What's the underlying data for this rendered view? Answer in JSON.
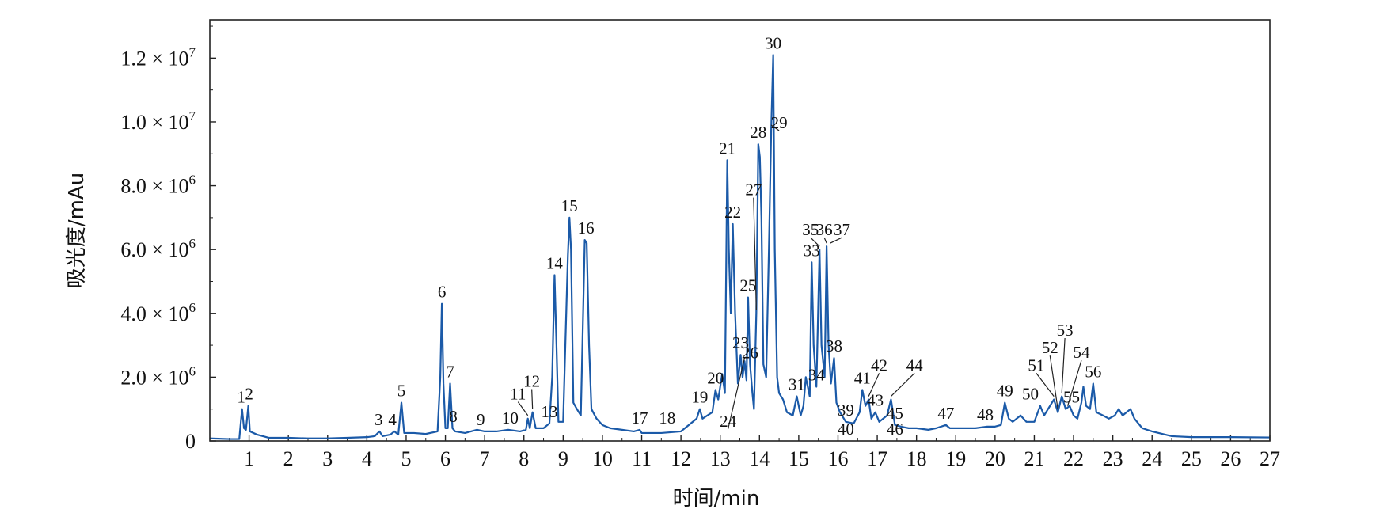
{
  "chart_data": {
    "type": "line",
    "title": "",
    "xlabel": "时间/min",
    "ylabel": "吸光度/mAu",
    "xlim": [
      0,
      27
    ],
    "ylim": [
      0,
      13200000
    ],
    "x_ticks": [
      "1",
      "2",
      "3",
      "4",
      "5",
      "6",
      "7",
      "8",
      "9",
      "10",
      "11",
      "12",
      "13",
      "14",
      "15",
      "16",
      "17",
      "18",
      "19",
      "20",
      "21",
      "22",
      "23",
      "24",
      "25",
      "26",
      "27"
    ],
    "y_ticks": [
      {
        "value": 0,
        "label": "0",
        "exp": ""
      },
      {
        "value": 2000000,
        "label": "2.0 × 10",
        "exp": "6"
      },
      {
        "value": 4000000,
        "label": "4.0 × 10",
        "exp": "6"
      },
      {
        "value": 6000000,
        "label": "6.0 × 10",
        "exp": "6"
      },
      {
        "value": 8000000,
        "label": "8.0 × 10",
        "exp": "6"
      },
      {
        "value": 10000000,
        "label": "1.0 × 10",
        "exp": "7"
      },
      {
        "value": 12000000,
        "label": "1.2 × 10",
        "exp": "7"
      }
    ],
    "series": [
      {
        "color": "#1b5aa8",
        "points": [
          [
            0,
            80000
          ],
          [
            0.5,
            60000
          ],
          [
            0.75,
            60000
          ],
          [
            0.82,
            1000000
          ],
          [
            0.87,
            400000
          ],
          [
            0.92,
            350000
          ],
          [
            0.98,
            1100000
          ],
          [
            1.02,
            300000
          ],
          [
            1.2,
            200000
          ],
          [
            1.5,
            100000
          ],
          [
            2,
            100000
          ],
          [
            2.5,
            80000
          ],
          [
            3,
            80000
          ],
          [
            3.5,
            100000
          ],
          [
            4,
            120000
          ],
          [
            4.2,
            150000
          ],
          [
            4.32,
            300000
          ],
          [
            4.4,
            150000
          ],
          [
            4.6,
            200000
          ],
          [
            4.7,
            300000
          ],
          [
            4.8,
            200000
          ],
          [
            4.88,
            1200000
          ],
          [
            4.95,
            250000
          ],
          [
            5.2,
            250000
          ],
          [
            5.5,
            220000
          ],
          [
            5.8,
            300000
          ],
          [
            5.87,
            2000000
          ],
          [
            5.91,
            4300000
          ],
          [
            5.95,
            1800000
          ],
          [
            6.0,
            400000
          ],
          [
            6.06,
            400000
          ],
          [
            6.12,
            1800000
          ],
          [
            6.18,
            400000
          ],
          [
            6.25,
            300000
          ],
          [
            6.5,
            250000
          ],
          [
            6.8,
            350000
          ],
          [
            7.0,
            300000
          ],
          [
            7.3,
            300000
          ],
          [
            7.6,
            350000
          ],
          [
            7.9,
            300000
          ],
          [
            8.05,
            350000
          ],
          [
            8.1,
            700000
          ],
          [
            8.15,
            400000
          ],
          [
            8.22,
            900000
          ],
          [
            8.3,
            400000
          ],
          [
            8.5,
            400000
          ],
          [
            8.65,
            550000
          ],
          [
            8.72,
            2000000
          ],
          [
            8.78,
            5200000
          ],
          [
            8.83,
            3000000
          ],
          [
            8.88,
            600000
          ],
          [
            9.0,
            600000
          ],
          [
            9.12,
            5800000
          ],
          [
            9.16,
            7000000
          ],
          [
            9.2,
            6000000
          ],
          [
            9.26,
            1200000
          ],
          [
            9.35,
            1000000
          ],
          [
            9.45,
            800000
          ],
          [
            9.55,
            6300000
          ],
          [
            9.6,
            6200000
          ],
          [
            9.66,
            3000000
          ],
          [
            9.72,
            1000000
          ],
          [
            9.85,
            700000
          ],
          [
            10.0,
            500000
          ],
          [
            10.2,
            400000
          ],
          [
            10.5,
            350000
          ],
          [
            10.8,
            300000
          ],
          [
            10.95,
            350000
          ],
          [
            11.0,
            250000
          ],
          [
            11.5,
            250000
          ],
          [
            12.0,
            300000
          ],
          [
            12.2,
            500000
          ],
          [
            12.4,
            700000
          ],
          [
            12.48,
            1000000
          ],
          [
            12.55,
            700000
          ],
          [
            12.8,
            900000
          ],
          [
            12.88,
            1600000
          ],
          [
            12.95,
            1300000
          ],
          [
            13.05,
            2100000
          ],
          [
            13.12,
            1500000
          ],
          [
            13.18,
            8800000
          ],
          [
            13.22,
            6000000
          ],
          [
            13.27,
            4000000
          ],
          [
            13.32,
            6800000
          ],
          [
            13.38,
            4000000
          ],
          [
            13.45,
            1800000
          ],
          [
            13.52,
            2700000
          ],
          [
            13.57,
            2000000
          ],
          [
            13.62,
            2500000
          ],
          [
            13.67,
            1900000
          ],
          [
            13.71,
            4500000
          ],
          [
            13.76,
            2400000
          ],
          [
            13.82,
            1500000
          ],
          [
            13.86,
            1000000
          ],
          [
            13.92,
            4000000
          ],
          [
            13.97,
            9300000
          ],
          [
            14.01,
            8900000
          ],
          [
            14.05,
            7000000
          ],
          [
            14.1,
            2400000
          ],
          [
            14.17,
            2000000
          ],
          [
            14.24,
            6000000
          ],
          [
            14.3,
            9800000
          ],
          [
            14.35,
            12100000
          ],
          [
            14.39,
            6000000
          ],
          [
            14.45,
            2000000
          ],
          [
            14.5,
            1500000
          ],
          [
            14.6,
            1300000
          ],
          [
            14.7,
            900000
          ],
          [
            14.85,
            800000
          ],
          [
            14.95,
            1400000
          ],
          [
            15.05,
            800000
          ],
          [
            15.12,
            1100000
          ],
          [
            15.18,
            2000000
          ],
          [
            15.28,
            1400000
          ],
          [
            15.33,
            5600000
          ],
          [
            15.38,
            3000000
          ],
          [
            15.45,
            1700000
          ],
          [
            15.53,
            6000000
          ],
          [
            15.58,
            3000000
          ],
          [
            15.66,
            2000000
          ],
          [
            15.71,
            6100000
          ],
          [
            15.76,
            3000000
          ],
          [
            15.82,
            1800000
          ],
          [
            15.9,
            2600000
          ],
          [
            15.96,
            1200000
          ],
          [
            16.05,
            900000
          ],
          [
            16.2,
            600000
          ],
          [
            16.4,
            550000
          ],
          [
            16.55,
            900000
          ],
          [
            16.62,
            1600000
          ],
          [
            16.7,
            1100000
          ],
          [
            16.78,
            1300000
          ],
          [
            16.85,
            700000
          ],
          [
            16.95,
            900000
          ],
          [
            17.05,
            600000
          ],
          [
            17.25,
            800000
          ],
          [
            17.35,
            1300000
          ],
          [
            17.45,
            500000
          ],
          [
            17.6,
            450000
          ],
          [
            17.8,
            400000
          ],
          [
            18.0,
            400000
          ],
          [
            18.3,
            350000
          ],
          [
            18.5,
            400000
          ],
          [
            18.75,
            500000
          ],
          [
            18.85,
            400000
          ],
          [
            19.0,
            400000
          ],
          [
            19.5,
            400000
          ],
          [
            19.8,
            450000
          ],
          [
            20.0,
            450000
          ],
          [
            20.15,
            500000
          ],
          [
            20.25,
            1200000
          ],
          [
            20.35,
            700000
          ],
          [
            20.45,
            600000
          ],
          [
            20.65,
            800000
          ],
          [
            20.8,
            600000
          ],
          [
            21.0,
            600000
          ],
          [
            21.15,
            1100000
          ],
          [
            21.25,
            800000
          ],
          [
            21.35,
            1000000
          ],
          [
            21.5,
            1300000
          ],
          [
            21.6,
            900000
          ],
          [
            21.7,
            1400000
          ],
          [
            21.8,
            1000000
          ],
          [
            21.9,
            1100000
          ],
          [
            22.0,
            800000
          ],
          [
            22.1,
            700000
          ],
          [
            22.2,
            1200000
          ],
          [
            22.25,
            1700000
          ],
          [
            22.32,
            1100000
          ],
          [
            22.42,
            1000000
          ],
          [
            22.5,
            1800000
          ],
          [
            22.58,
            900000
          ],
          [
            22.75,
            800000
          ],
          [
            22.9,
            700000
          ],
          [
            23.05,
            800000
          ],
          [
            23.15,
            1000000
          ],
          [
            23.25,
            800000
          ],
          [
            23.35,
            900000
          ],
          [
            23.45,
            1000000
          ],
          [
            23.55,
            700000
          ],
          [
            23.75,
            400000
          ],
          [
            24.0,
            300000
          ],
          [
            24.5,
            150000
          ],
          [
            25,
            120000
          ],
          [
            26,
            120000
          ],
          [
            27,
            110000
          ]
        ]
      }
    ],
    "peak_labels": [
      {
        "text": "1",
        "x": 0.8,
        "y": 1000000
      },
      {
        "text": "2",
        "x": 1.0,
        "y": 1100000
      },
      {
        "text": "3",
        "x": 4.3,
        "y": 300000
      },
      {
        "text": "4",
        "x": 4.65,
        "y": 300000
      },
      {
        "text": "5",
        "x": 4.88,
        "y": 1200000
      },
      {
        "text": "6",
        "x": 5.91,
        "y": 4300000
      },
      {
        "text": "7",
        "x": 6.12,
        "y": 1800000
      },
      {
        "text": "8",
        "x": 6.2,
        "y": 400000
      },
      {
        "text": "9",
        "x": 6.9,
        "y": 300000
      },
      {
        "text": "10",
        "x": 7.65,
        "y": 350000
      },
      {
        "text": "11",
        "x": 8.1,
        "y": 700000,
        "lx": 7.85,
        "ly": 1300000
      },
      {
        "text": "12",
        "x": 8.22,
        "y": 900000,
        "lx": 8.2,
        "ly": 1700000
      },
      {
        "text": "13",
        "x": 8.65,
        "y": 550000
      },
      {
        "text": "14",
        "x": 8.78,
        "y": 5200000
      },
      {
        "text": "15",
        "x": 9.16,
        "y": 7000000
      },
      {
        "text": "16",
        "x": 9.58,
        "y": 6300000
      },
      {
        "text": "17",
        "x": 10.95,
        "y": 350000
      },
      {
        "text": "18",
        "x": 11.65,
        "y": 350000
      },
      {
        "text": "19",
        "x": 12.48,
        "y": 1000000
      },
      {
        "text": "20",
        "x": 12.88,
        "y": 1600000
      },
      {
        "text": "21",
        "x": 13.18,
        "y": 8800000
      },
      {
        "text": "22",
        "x": 13.32,
        "y": 6800000
      },
      {
        "text": "23",
        "x": 13.52,
        "y": 2700000
      },
      {
        "text": "24",
        "x": 13.62,
        "y": 2500000,
        "lx": 13.2,
        "ly": 450000
      },
      {
        "text": "25",
        "x": 13.71,
        "y": 4500000
      },
      {
        "text": "26",
        "x": 13.76,
        "y": 2400000
      },
      {
        "text": "27",
        "x": 13.92,
        "y": 4000000,
        "lx": 13.85,
        "ly": 7700000
      },
      {
        "text": "28",
        "x": 13.97,
        "y": 9300000
      },
      {
        "text": "29",
        "x": 14.3,
        "y": 9800000,
        "lx": 14.5,
        "ly": 9800000
      },
      {
        "text": "30",
        "x": 14.35,
        "y": 12100000
      },
      {
        "text": "31",
        "x": 14.95,
        "y": 1400000
      },
      {
        "text": "33",
        "x": 15.33,
        "y": 5600000
      },
      {
        "text": "34",
        "x": 15.45,
        "y": 1700000
      },
      {
        "text": "35",
        "x": 15.53,
        "y": 6000000,
        "lx": 15.3,
        "ly": 6450000
      },
      {
        "text": "36",
        "x": 15.71,
        "y": 6100000,
        "lx": 15.65,
        "ly": 6450000
      },
      {
        "text": "37",
        "x": 15.8,
        "y": 6100000,
        "lx": 16.1,
        "ly": 6450000
      },
      {
        "text": "38",
        "x": 15.9,
        "y": 2600000
      },
      {
        "text": "39",
        "x": 16.2,
        "y": 600000
      },
      {
        "text": "40",
        "x": 16.2,
        "y": 0
      },
      {
        "text": "41",
        "x": 16.62,
        "y": 1600000
      },
      {
        "text": "42",
        "x": 16.78,
        "y": 1300000,
        "lx": 17.05,
        "ly": 2200000
      },
      {
        "text": "43",
        "x": 16.95,
        "y": 900000
      },
      {
        "text": "44",
        "x": 17.35,
        "y": 1300000,
        "lx": 17.95,
        "ly": 2200000
      },
      {
        "text": "45",
        "x": 17.45,
        "y": 500000
      },
      {
        "text": "46",
        "x": 17.45,
        "y": 0
      },
      {
        "text": "47",
        "x": 18.75,
        "y": 500000
      },
      {
        "text": "48",
        "x": 19.75,
        "y": 450000
      },
      {
        "text": "49",
        "x": 20.25,
        "y": 1200000
      },
      {
        "text": "50",
        "x": 20.9,
        "y": 1100000
      },
      {
        "text": "51",
        "x": 21.5,
        "y": 1300000,
        "lx": 21.05,
        "ly": 2200000
      },
      {
        "text": "52",
        "x": 21.6,
        "y": 900000,
        "lx": 21.4,
        "ly": 2750000
      },
      {
        "text": "53",
        "x": 21.7,
        "y": 1400000,
        "lx": 21.78,
        "ly": 3300000
      },
      {
        "text": "54",
        "x": 21.85,
        "y": 1000000,
        "lx": 22.2,
        "ly": 2600000
      },
      {
        "text": "55",
        "x": 21.95,
        "y": 1000000
      },
      {
        "text": "56",
        "x": 22.5,
        "y": 1800000
      }
    ]
  }
}
